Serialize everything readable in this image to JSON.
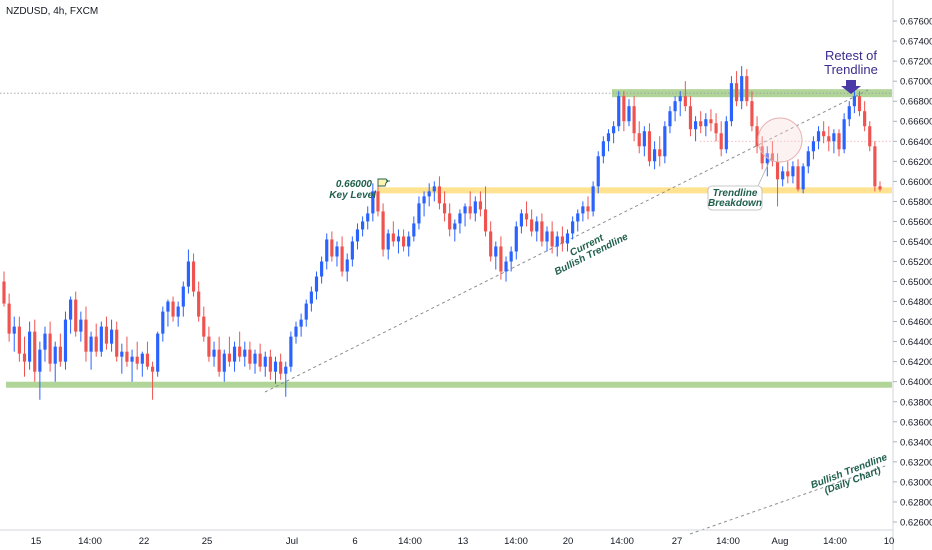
{
  "symbol_title": "NZDUSD, 4h, FXCM",
  "colors": {
    "up": "#2962ff",
    "down": "#ef5350",
    "zone_green": "#a8d08d",
    "zone_yellow": "#ffe28a",
    "purple": "#4a3aa8",
    "text_green": "#1f5f4c"
  },
  "annotations": {
    "retest_line1": "Retest of",
    "retest_line2": "Trendline",
    "key_level_line1": "0.66000",
    "key_level_line2": "Key Level",
    "breakdown_line1": "Trendline",
    "breakdown_line2": "Breakdown",
    "current_trend_line1": "Current",
    "current_trend_line2": "Bullish Trendline",
    "daily_trend_line1": "Bullish Trendline",
    "daily_trend_line2": "(Daily Chart)"
  },
  "chart_data": {
    "type": "candlestick",
    "title": "NZDUSD, 4h, FXCM",
    "ylim": [
      0.6252,
      0.6781
    ],
    "y_ticks": [
      "0.67600",
      "0.67400",
      "0.67200",
      "0.67000",
      "0.66800",
      "0.66600",
      "0.66400",
      "0.66200",
      "0.66000",
      "0.65800",
      "0.65600",
      "0.65400",
      "0.65200",
      "0.65000",
      "0.64800",
      "0.64600",
      "0.64400",
      "0.64200",
      "0.64000",
      "0.63800",
      "0.63600",
      "0.63400",
      "0.63200",
      "0.63000",
      "0.62800",
      "0.62600"
    ],
    "x_ticks": [
      "15",
      "14:00",
      "22",
      "25",
      "Jul",
      "6",
      "14:00",
      "13",
      "14:00",
      "20",
      "14:00",
      "27",
      "14:00",
      "Aug",
      "14:00",
      "10"
    ],
    "levels": [
      {
        "name": "support",
        "low": 0.6394,
        "high": 0.64
      },
      {
        "name": "key level",
        "low": 0.6588,
        "high": 0.6594
      },
      {
        "name": "resistance",
        "low": 0.6684,
        "high": 0.6692
      }
    ],
    "reference_line": 0.6688,
    "candles_ohlc": [
      [
        0.65,
        0.651,
        0.6475,
        0.6478
      ],
      [
        0.6478,
        0.6488,
        0.644,
        0.6448
      ],
      [
        0.6448,
        0.6465,
        0.643,
        0.6455
      ],
      [
        0.6455,
        0.6465,
        0.642,
        0.6428
      ],
      [
        0.6428,
        0.6445,
        0.6405,
        0.642
      ],
      [
        0.642,
        0.646,
        0.6412,
        0.645
      ],
      [
        0.645,
        0.6462,
        0.64,
        0.641
      ],
      [
        0.641,
        0.644,
        0.6382,
        0.6432
      ],
      [
        0.6432,
        0.6455,
        0.642,
        0.6448
      ],
      [
        0.6448,
        0.646,
        0.641,
        0.6418
      ],
      [
        0.6418,
        0.644,
        0.64,
        0.6435
      ],
      [
        0.6435,
        0.6448,
        0.6415,
        0.642
      ],
      [
        0.642,
        0.647,
        0.6412,
        0.6462
      ],
      [
        0.6462,
        0.6485,
        0.6448,
        0.6482
      ],
      [
        0.6482,
        0.649,
        0.6445,
        0.645
      ],
      [
        0.645,
        0.647,
        0.644,
        0.6462
      ],
      [
        0.6462,
        0.6475,
        0.642,
        0.643
      ],
      [
        0.643,
        0.645,
        0.6412,
        0.6445
      ],
      [
        0.6445,
        0.6458,
        0.6425,
        0.643
      ],
      [
        0.643,
        0.646,
        0.6425,
        0.6455
      ],
      [
        0.6455,
        0.6465,
        0.6432,
        0.6438
      ],
      [
        0.6438,
        0.6462,
        0.643,
        0.6452
      ],
      [
        0.6452,
        0.646,
        0.642,
        0.6425
      ],
      [
        0.6425,
        0.6438,
        0.6408,
        0.643
      ],
      [
        0.643,
        0.6445,
        0.6415,
        0.642
      ],
      [
        0.642,
        0.6432,
        0.64,
        0.6425
      ],
      [
        0.6425,
        0.644,
        0.6412,
        0.6418
      ],
      [
        0.6418,
        0.643,
        0.6405,
        0.6428
      ],
      [
        0.6428,
        0.644,
        0.6412,
        0.6415
      ],
      [
        0.6415,
        0.642,
        0.6382,
        0.641
      ],
      [
        0.641,
        0.645,
        0.6405,
        0.6448
      ],
      [
        0.6448,
        0.6475,
        0.644,
        0.647
      ],
      [
        0.647,
        0.6482,
        0.6455,
        0.648
      ],
      [
        0.648,
        0.6485,
        0.646,
        0.6465
      ],
      [
        0.6465,
        0.648,
        0.6455,
        0.6475
      ],
      [
        0.6475,
        0.65,
        0.6465,
        0.6495
      ],
      [
        0.6495,
        0.6532,
        0.6488,
        0.652
      ],
      [
        0.652,
        0.6528,
        0.6485,
        0.649
      ],
      [
        0.649,
        0.65,
        0.646,
        0.6465
      ],
      [
        0.6465,
        0.6475,
        0.644,
        0.6445
      ],
      [
        0.6445,
        0.6455,
        0.642,
        0.6425
      ],
      [
        0.6425,
        0.644,
        0.6415,
        0.6432
      ],
      [
        0.6432,
        0.6445,
        0.6405,
        0.641
      ],
      [
        0.641,
        0.6432,
        0.64,
        0.6428
      ],
      [
        0.6428,
        0.6445,
        0.6415,
        0.642
      ],
      [
        0.642,
        0.644,
        0.641,
        0.6435
      ],
      [
        0.6435,
        0.645,
        0.642,
        0.6425
      ],
      [
        0.6425,
        0.644,
        0.6415,
        0.6432
      ],
      [
        0.6432,
        0.644,
        0.6412,
        0.6418
      ],
      [
        0.6418,
        0.6432,
        0.6408,
        0.6428
      ],
      [
        0.6428,
        0.6438,
        0.641,
        0.6415
      ],
      [
        0.6415,
        0.643,
        0.6405,
        0.6425
      ],
      [
        0.6425,
        0.6432,
        0.6402,
        0.641
      ],
      [
        0.641,
        0.6425,
        0.6398,
        0.642
      ],
      [
        0.642,
        0.6428,
        0.6402,
        0.6408
      ],
      [
        0.6408,
        0.642,
        0.6385,
        0.6415
      ],
      [
        0.6415,
        0.645,
        0.641,
        0.6445
      ],
      [
        0.6445,
        0.646,
        0.6438,
        0.6455
      ],
      [
        0.6455,
        0.6468,
        0.6445,
        0.6462
      ],
      [
        0.6462,
        0.6482,
        0.6455,
        0.6478
      ],
      [
        0.6478,
        0.6495,
        0.647,
        0.649
      ],
      [
        0.649,
        0.651,
        0.6482,
        0.6505
      ],
      [
        0.6505,
        0.6525,
        0.6498,
        0.652
      ],
      [
        0.652,
        0.6548,
        0.6512,
        0.6542
      ],
      [
        0.6542,
        0.655,
        0.652,
        0.6525
      ],
      [
        0.6525,
        0.654,
        0.6515,
        0.6535
      ],
      [
        0.6535,
        0.6545,
        0.6505,
        0.651
      ],
      [
        0.651,
        0.6528,
        0.65,
        0.6522
      ],
      [
        0.6522,
        0.6545,
        0.6515,
        0.654
      ],
      [
        0.654,
        0.6558,
        0.6532,
        0.6552
      ],
      [
        0.6552,
        0.6565,
        0.6545,
        0.656
      ],
      [
        0.656,
        0.6575,
        0.6552,
        0.6568
      ],
      [
        0.6568,
        0.6598,
        0.656,
        0.659
      ],
      [
        0.659,
        0.6595,
        0.6565,
        0.657
      ],
      [
        0.657,
        0.6578,
        0.6525,
        0.6532
      ],
      [
        0.6532,
        0.6552,
        0.6522,
        0.6548
      ],
      [
        0.6548,
        0.656,
        0.6535,
        0.654
      ],
      [
        0.654,
        0.6552,
        0.6528,
        0.6545
      ],
      [
        0.6545,
        0.6552,
        0.653,
        0.6535
      ],
      [
        0.6535,
        0.655,
        0.6525,
        0.6545
      ],
      [
        0.6545,
        0.6565,
        0.654,
        0.6558
      ],
      [
        0.6558,
        0.6585,
        0.6552,
        0.6578
      ],
      [
        0.6578,
        0.659,
        0.6565,
        0.6585
      ],
      [
        0.6585,
        0.6598,
        0.6575,
        0.659
      ],
      [
        0.659,
        0.66,
        0.658,
        0.6595
      ],
      [
        0.6595,
        0.6605,
        0.6572,
        0.6578
      ],
      [
        0.6578,
        0.659,
        0.656,
        0.6568
      ],
      [
        0.6568,
        0.6578,
        0.6545,
        0.6552
      ],
      [
        0.6552,
        0.6562,
        0.654,
        0.6558
      ],
      [
        0.6558,
        0.6572,
        0.6548,
        0.6568
      ],
      [
        0.6568,
        0.6578,
        0.6555,
        0.6575
      ],
      [
        0.6575,
        0.659,
        0.6562,
        0.6568
      ],
      [
        0.6568,
        0.6585,
        0.656,
        0.658
      ],
      [
        0.658,
        0.659,
        0.6565,
        0.6572
      ],
      [
        0.6572,
        0.6595,
        0.6545,
        0.655
      ],
      [
        0.655,
        0.656,
        0.652,
        0.6525
      ],
      [
        0.6525,
        0.654,
        0.6512,
        0.6535
      ],
      [
        0.6535,
        0.6545,
        0.6502,
        0.651
      ],
      [
        0.651,
        0.6525,
        0.65,
        0.652
      ],
      [
        0.652,
        0.6535,
        0.651,
        0.653
      ],
      [
        0.653,
        0.656,
        0.6522,
        0.6555
      ],
      [
        0.6555,
        0.6572,
        0.6548,
        0.6568
      ],
      [
        0.6568,
        0.658,
        0.6555,
        0.6562
      ],
      [
        0.6562,
        0.6572,
        0.6545,
        0.655
      ],
      [
        0.655,
        0.6565,
        0.654,
        0.656
      ],
      [
        0.656,
        0.6568,
        0.6535,
        0.654
      ],
      [
        0.654,
        0.6555,
        0.653,
        0.655
      ],
      [
        0.655,
        0.656,
        0.6528,
        0.6535
      ],
      [
        0.6535,
        0.655,
        0.6525,
        0.6545
      ],
      [
        0.6545,
        0.6555,
        0.653,
        0.6538
      ],
      [
        0.6538,
        0.6552,
        0.653,
        0.6548
      ],
      [
        0.6548,
        0.6565,
        0.6542,
        0.656
      ],
      [
        0.656,
        0.6572,
        0.655,
        0.6568
      ],
      [
        0.6568,
        0.658,
        0.656,
        0.6575
      ],
      [
        0.6575,
        0.6585,
        0.6562,
        0.657
      ],
      [
        0.657,
        0.66,
        0.6565,
        0.6595
      ],
      [
        0.6595,
        0.663,
        0.6588,
        0.6625
      ],
      [
        0.6625,
        0.6645,
        0.6618,
        0.664
      ],
      [
        0.664,
        0.6652,
        0.663,
        0.6648
      ],
      [
        0.6648,
        0.666,
        0.6638,
        0.6655
      ],
      [
        0.6655,
        0.669,
        0.665,
        0.6685
      ],
      [
        0.6685,
        0.669,
        0.665,
        0.666
      ],
      [
        0.666,
        0.6682,
        0.6655,
        0.6675
      ],
      [
        0.6675,
        0.6685,
        0.664,
        0.6648
      ],
      [
        0.6648,
        0.666,
        0.6628,
        0.6635
      ],
      [
        0.6635,
        0.6655,
        0.6625,
        0.665
      ],
      [
        0.665,
        0.6658,
        0.6615,
        0.662
      ],
      [
        0.662,
        0.664,
        0.6612,
        0.6632
      ],
      [
        0.6632,
        0.6645,
        0.6615,
        0.6625
      ],
      [
        0.6625,
        0.666,
        0.6618,
        0.6655
      ],
      [
        0.6655,
        0.6675,
        0.6648,
        0.667
      ],
      [
        0.667,
        0.6685,
        0.666,
        0.668
      ],
      [
        0.668,
        0.669,
        0.6665,
        0.6685
      ],
      [
        0.6685,
        0.67,
        0.667,
        0.6675
      ],
      [
        0.6675,
        0.6685,
        0.6645,
        0.6652
      ],
      [
        0.6652,
        0.6665,
        0.664,
        0.666
      ],
      [
        0.666,
        0.667,
        0.6648,
        0.6655
      ],
      [
        0.6655,
        0.6668,
        0.6645,
        0.6662
      ],
      [
        0.6662,
        0.6672,
        0.665,
        0.6658
      ],
      [
        0.6658,
        0.6668,
        0.664,
        0.6648
      ],
      [
        0.6648,
        0.666,
        0.6625,
        0.6632
      ],
      [
        0.6632,
        0.6665,
        0.6628,
        0.666
      ],
      [
        0.666,
        0.6705,
        0.6655,
        0.6698
      ],
      [
        0.6698,
        0.671,
        0.6675,
        0.668
      ],
      [
        0.668,
        0.6715,
        0.6672,
        0.6705
      ],
      [
        0.6705,
        0.6712,
        0.6675,
        0.668
      ],
      [
        0.668,
        0.669,
        0.665,
        0.6655
      ],
      [
        0.6655,
        0.6665,
        0.6628,
        0.6635
      ],
      [
        0.6635,
        0.6645,
        0.6612,
        0.6618
      ],
      [
        0.6618,
        0.6635,
        0.6605,
        0.6628
      ],
      [
        0.6628,
        0.664,
        0.6615,
        0.662
      ],
      [
        0.662,
        0.6628,
        0.6575,
        0.6602
      ],
      [
        0.6602,
        0.6615,
        0.6595,
        0.661
      ],
      [
        0.661,
        0.662,
        0.6598,
        0.6605
      ],
      [
        0.6605,
        0.662,
        0.6598,
        0.6615
      ],
      [
        0.6615,
        0.6622,
        0.659,
        0.6592
      ],
      [
        0.6592,
        0.6618,
        0.6588,
        0.6615
      ],
      [
        0.6615,
        0.6635,
        0.6608,
        0.663
      ],
      [
        0.663,
        0.6645,
        0.6622,
        0.664
      ],
      [
        0.664,
        0.6655,
        0.6632,
        0.665
      ],
      [
        0.665,
        0.666,
        0.6638,
        0.6645
      ],
      [
        0.6645,
        0.6655,
        0.663,
        0.664
      ],
      [
        0.664,
        0.6652,
        0.6628,
        0.6648
      ],
      [
        0.6648,
        0.6652,
        0.6625,
        0.6632
      ],
      [
        0.6632,
        0.6668,
        0.6628,
        0.6662
      ],
      [
        0.6662,
        0.668,
        0.6655,
        0.6675
      ],
      [
        0.6675,
        0.669,
        0.6668,
        0.6685
      ],
      [
        0.6685,
        0.669,
        0.6665,
        0.667
      ],
      [
        0.667,
        0.668,
        0.665,
        0.6655
      ],
      [
        0.6655,
        0.666,
        0.663,
        0.6635
      ],
      [
        0.6635,
        0.664,
        0.659,
        0.6595
      ],
      [
        0.6595,
        0.66,
        0.659,
        0.6592
      ]
    ]
  }
}
